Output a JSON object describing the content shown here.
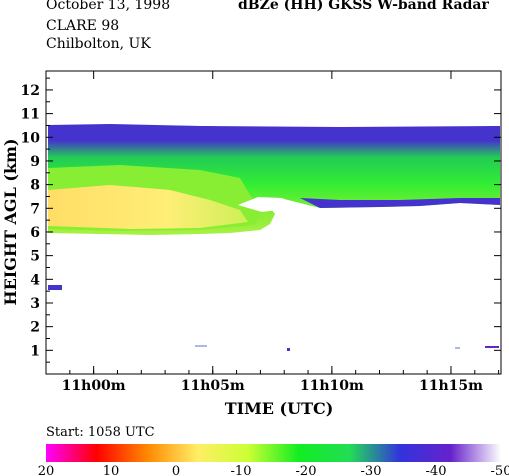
{
  "header": {
    "date": "October 13, 1998",
    "campaign": "CLARE 98",
    "site": "Chilbolton, UK",
    "title": "dBZe (HH)   GKSS  W-band Radar"
  },
  "footer": {
    "start_label": "Start: 1058 UTC"
  },
  "chart_data": {
    "type": "heatmap",
    "title": "dBZe (HH)   GKSS  W-band Radar",
    "xlabel": "TIME (UTC)",
    "ylabel": "HEIGHT AGL (km)",
    "x_ticks": [
      {
        "label": "11h00m",
        "minutes": 2
      },
      {
        "label": "11h05m",
        "minutes": 7
      },
      {
        "label": "11h10m",
        "minutes": 12
      },
      {
        "label": "11h15m",
        "minutes": 17
      }
    ],
    "xlim_minutes_after_start": [
      0,
      19.1
    ],
    "y_ticks": [
      1,
      2,
      3,
      4,
      5,
      6,
      7,
      8,
      9,
      10,
      11,
      12
    ],
    "ylim": [
      0,
      12.8
    ],
    "colorbar": {
      "labels": [
        "20",
        "10",
        "0",
        "-10",
        "-20",
        "-30",
        "-40",
        "-50"
      ],
      "range": [
        20,
        -50
      ],
      "colors": [
        "#ff00ff",
        "#ff0000",
        "#ff8800",
        "#ffee66",
        "#ccff33",
        "#11ee22",
        "#22dd55",
        "#3333dd",
        "#6622cc",
        "#ffffff"
      ]
    },
    "cloud_layers": [
      {
        "name": "main-layer",
        "x_start": 0,
        "x_end": 19.1,
        "base_top_km": [
          6.0,
          10.3
        ],
        "peak_dbze": 0
      },
      {
        "name": "isolated-echo",
        "x_start": 0.3,
        "x_end": 1.0,
        "height_km": 3.5,
        "peak_dbze": -40
      }
    ]
  }
}
